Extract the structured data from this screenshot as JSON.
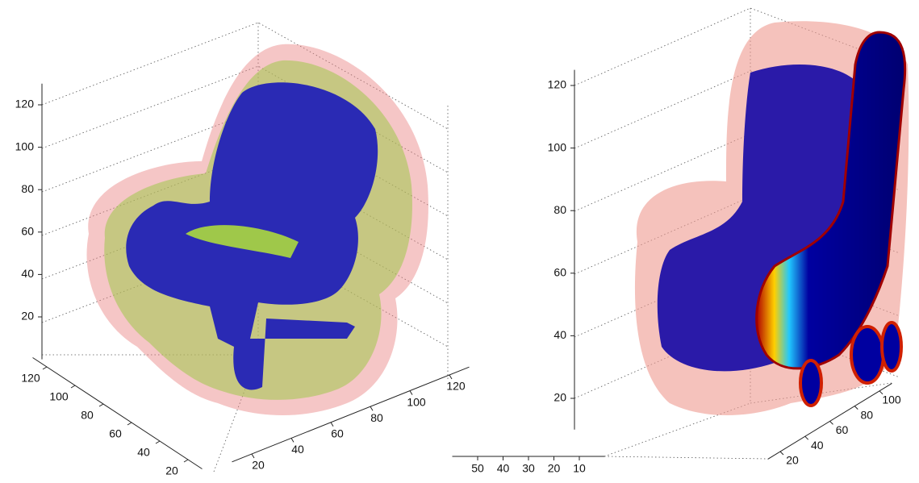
{
  "chart_data": [
    {
      "type": "volume3d",
      "zlim": [
        0,
        130
      ],
      "zticks": [
        20,
        40,
        60,
        80,
        100,
        120
      ],
      "ylim": [
        10,
        130
      ],
      "yticks": [
        20,
        40,
        60,
        80,
        100,
        120
      ],
      "xlim": [
        10,
        130
      ],
      "xticks": [
        20,
        40,
        60,
        80,
        100,
        120
      ]
    },
    {
      "type": "volume3d",
      "zlim": [
        10,
        125
      ],
      "zticks": [
        20,
        40,
        60,
        80,
        100,
        120
      ],
      "xlim": [
        0,
        60
      ],
      "xticks": [
        10,
        20,
        30,
        40,
        50
      ],
      "ylim": [
        10,
        110
      ],
      "yticks": [
        20,
        40,
        60,
        80,
        100
      ]
    }
  ]
}
